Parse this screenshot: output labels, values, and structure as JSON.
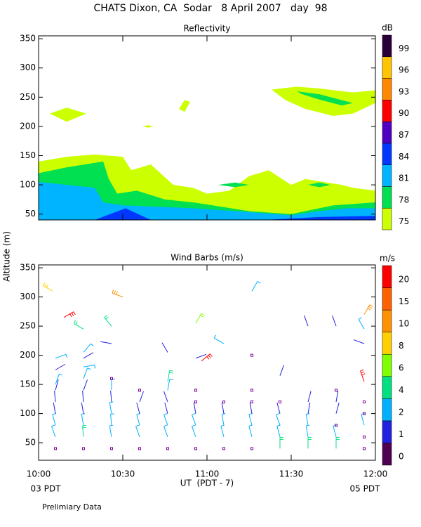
{
  "title": "CHATS Dixon, CA  Sodar   8 April 2007   day  98",
  "footer": "Prelimiary Data",
  "chart_data": [
    {
      "type": "contour",
      "title": "Reflectivity",
      "xlim": [
        0,
        120
      ],
      "xticks": [
        0,
        30,
        60,
        90,
        120
      ],
      "ylim": [
        40,
        355
      ],
      "yticks": [
        50,
        100,
        150,
        200,
        250,
        300,
        350
      ],
      "colorbar": {
        "title": "dB",
        "levels": [
          75,
          78,
          81,
          84,
          87,
          90,
          93,
          96,
          99
        ],
        "colors": [
          "#ccff00",
          "#00e050",
          "#00b4ff",
          "#0038ff",
          "#5000c0",
          "#ff0000",
          "#ff8800",
          "#ffc400",
          "#2a0038"
        ]
      },
      "regions": [
        {
          "level": 75,
          "t": [
            0,
            10,
            20,
            30,
            33,
            40,
            48,
            55,
            60,
            68,
            75,
            82,
            90,
            95,
            108,
            112,
            120,
            120,
            0
          ],
          "z": [
            140,
            148,
            152,
            148,
            125,
            135,
            100,
            95,
            85,
            90,
            115,
            125,
            100,
            110,
            100,
            95,
            90,
            40,
            40
          ]
        },
        {
          "level": 75,
          "t": [
            4,
            10,
            17,
            10
          ],
          "z": [
            222,
            232,
            222,
            208
          ]
        },
        {
          "level": 75,
          "t": [
            37,
            39,
            41,
            39
          ],
          "z": [
            200,
            202,
            200,
            198
          ]
        },
        {
          "level": 75,
          "t": [
            50,
            52,
            54,
            52
          ],
          "z": [
            230,
            245,
            242,
            225
          ]
        },
        {
          "level": 75,
          "t": [
            83,
            92,
            100,
            112,
            120,
            120,
            112,
            105,
            95,
            88
          ],
          "z": [
            263,
            268,
            265,
            258,
            262,
            240,
            222,
            218,
            230,
            245
          ]
        },
        {
          "level": 78,
          "t": [
            0,
            10,
            23,
            25,
            28,
            35,
            45,
            55,
            62,
            75,
            90,
            105,
            120,
            120,
            0
          ],
          "z": [
            120,
            130,
            140,
            110,
            85,
            90,
            75,
            70,
            65,
            55,
            50,
            65,
            70,
            40,
            40
          ]
        },
        {
          "level": 78,
          "t": [
            92,
            100,
            112,
            108,
            100,
            94
          ],
          "z": [
            260,
            255,
            240,
            236,
            246,
            255
          ]
        },
        {
          "level": 78,
          "t": [
            64,
            70,
            75,
            70
          ],
          "z": [
            100,
            104,
            100,
            96
          ]
        },
        {
          "level": 78,
          "t": [
            96,
            100,
            104,
            100
          ],
          "z": [
            100,
            104,
            100,
            96
          ]
        },
        {
          "level": 81,
          "t": [
            0,
            10,
            20,
            23,
            30,
            40,
            55,
            70,
            90,
            100,
            110,
            120,
            120,
            0
          ],
          "z": [
            105,
            100,
            95,
            70,
            65,
            63,
            60,
            55,
            48,
            55,
            60,
            60,
            40,
            40
          ]
        },
        {
          "level": 84,
          "t": [
            20,
            31,
            40
          ],
          "z": [
            40,
            60,
            40
          ]
        },
        {
          "level": 84,
          "t": [
            80,
            100,
            120,
            120
          ],
          "z": [
            40,
            45,
            47,
            40
          ]
        }
      ]
    },
    {
      "type": "barbs",
      "title": "Wind Barbs (m/s)",
      "ylabel": "Altitude (m)",
      "xlabel": "UT  (PDT - 7)",
      "x_start_label": "03 PDT",
      "x_end_label": "05 PDT",
      "xlim": [
        0,
        120
      ],
      "xticks": [
        {
          "value": 0,
          "label": "10:00"
        },
        {
          "value": 30,
          "label": "10:30"
        },
        {
          "value": 60,
          "label": "11:00"
        },
        {
          "value": 90,
          "label": "11:30"
        },
        {
          "value": 120,
          "label": "12:00"
        }
      ],
      "ylim": [
        20,
        355
      ],
      "yticks": [
        50,
        100,
        150,
        200,
        250,
        300,
        350
      ],
      "colorbar": {
        "title": "m/s",
        "levels": [
          0,
          1,
          2,
          4,
          6,
          8,
          10,
          15,
          20
        ],
        "colors": [
          "#500050",
          "#2020e0",
          "#00b0ff",
          "#00e080",
          "#80ff00",
          "#ffd000",
          "#ff9000",
          "#ff6000",
          "#ff0000"
        ]
      },
      "barbs": [
        {
          "t": 5,
          "z": 310,
          "speed": 8,
          "direction": 300
        },
        {
          "t": 9,
          "z": 265,
          "speed": 20,
          "direction": 60
        },
        {
          "t": 6,
          "z": 40,
          "speed": 0,
          "direction": 0
        },
        {
          "t": 6,
          "z": 60,
          "speed": 3,
          "direction": 340
        },
        {
          "t": 6,
          "z": 80,
          "speed": 3,
          "direction": 345
        },
        {
          "t": 6,
          "z": 100,
          "speed": 1.5,
          "direction": 350
        },
        {
          "t": 6,
          "z": 120,
          "speed": 1.5,
          "direction": 355
        },
        {
          "t": 6,
          "z": 140,
          "speed": 1.5,
          "direction": 15
        },
        {
          "t": 6,
          "z": 150,
          "speed": 3,
          "direction": 20
        },
        {
          "t": 6,
          "z": 175,
          "speed": 1.5,
          "direction": 60
        },
        {
          "t": 6,
          "z": 195,
          "speed": 3,
          "direction": 70
        },
        {
          "t": 16,
          "z": 40,
          "speed": 0,
          "direction": 0
        },
        {
          "t": 16,
          "z": 60,
          "speed": 5,
          "direction": 355
        },
        {
          "t": 16,
          "z": 80,
          "speed": 3,
          "direction": 350
        },
        {
          "t": 16,
          "z": 100,
          "speed": 1.5,
          "direction": 350
        },
        {
          "t": 16,
          "z": 120,
          "speed": 1.5,
          "direction": 355
        },
        {
          "t": 16,
          "z": 140,
          "speed": 1.5,
          "direction": 20
        },
        {
          "t": 16,
          "z": 160,
          "speed": 3,
          "direction": 20
        },
        {
          "t": 16,
          "z": 180,
          "speed": 3,
          "direction": 80
        },
        {
          "t": 16,
          "z": 195,
          "speed": 1.5,
          "direction": 60
        },
        {
          "t": 16,
          "z": 205,
          "speed": 3,
          "direction": 40
        },
        {
          "t": 16,
          "z": 245,
          "speed": 5,
          "direction": 300
        },
        {
          "t": 26,
          "z": 40,
          "speed": 0,
          "direction": 0
        },
        {
          "t": 26,
          "z": 60,
          "speed": 3,
          "direction": 350
        },
        {
          "t": 26,
          "z": 80,
          "speed": 3,
          "direction": 355
        },
        {
          "t": 26,
          "z": 100,
          "speed": 3,
          "direction": 350
        },
        {
          "t": 26,
          "z": 120,
          "speed": 1.5,
          "direction": 355
        },
        {
          "t": 26,
          "z": 140,
          "speed": 3,
          "direction": 0
        },
        {
          "t": 26,
          "z": 160,
          "speed": 0,
          "direction": 0
        },
        {
          "t": 26,
          "z": 220,
          "speed": 1.5,
          "direction": 280
        },
        {
          "t": 26,
          "z": 250,
          "speed": 5,
          "direction": 320
        },
        {
          "t": 30,
          "z": 300,
          "speed": 10,
          "direction": 290
        },
        {
          "t": 36,
          "z": 40,
          "speed": 0,
          "direction": 0
        },
        {
          "t": 36,
          "z": 60,
          "speed": 3,
          "direction": 340
        },
        {
          "t": 36,
          "z": 80,
          "speed": 3,
          "direction": 345
        },
        {
          "t": 36,
          "z": 100,
          "speed": 1.5,
          "direction": 345
        },
        {
          "t": 36,
          "z": 120,
          "speed": 1.5,
          "direction": 20
        },
        {
          "t": 36,
          "z": 140,
          "speed": 0,
          "direction": 0
        },
        {
          "t": 46,
          "z": 40,
          "speed": 0,
          "direction": 0
        },
        {
          "t": 46,
          "z": 60,
          "speed": 3,
          "direction": 340
        },
        {
          "t": 46,
          "z": 80,
          "speed": 3,
          "direction": 340
        },
        {
          "t": 46,
          "z": 100,
          "speed": 1.5,
          "direction": 345
        },
        {
          "t": 46,
          "z": 120,
          "speed": 1.5,
          "direction": 340
        },
        {
          "t": 46,
          "z": 140,
          "speed": 3,
          "direction": 10
        },
        {
          "t": 46,
          "z": 155,
          "speed": 5,
          "direction": 10
        },
        {
          "t": 46,
          "z": 205,
          "speed": 1.5,
          "direction": 330
        },
        {
          "t": 56,
          "z": 40,
          "speed": 0,
          "direction": 0
        },
        {
          "t": 56,
          "z": 60,
          "speed": 3,
          "direction": 340
        },
        {
          "t": 56,
          "z": 80,
          "speed": 3,
          "direction": 340
        },
        {
          "t": 56,
          "z": 100,
          "speed": 1.5,
          "direction": 350
        },
        {
          "t": 56,
          "z": 120,
          "speed": 0,
          "direction": 0
        },
        {
          "t": 56,
          "z": 140,
          "speed": 0,
          "direction": 0
        },
        {
          "t": 56,
          "z": 195,
          "speed": 1.5,
          "direction": 70
        },
        {
          "t": 58,
          "z": 190,
          "speed": 20,
          "direction": 50
        },
        {
          "t": 56,
          "z": 255,
          "speed": 6,
          "direction": 30
        },
        {
          "t": 66,
          "z": 40,
          "speed": 0,
          "direction": 0
        },
        {
          "t": 66,
          "z": 60,
          "speed": 3,
          "direction": 345
        },
        {
          "t": 66,
          "z": 80,
          "speed": 3,
          "direction": 350
        },
        {
          "t": 66,
          "z": 100,
          "speed": 1.5,
          "direction": 350
        },
        {
          "t": 66,
          "z": 120,
          "speed": 0,
          "direction": 0
        },
        {
          "t": 66,
          "z": 220,
          "speed": 3,
          "direction": 300
        },
        {
          "t": 76,
          "z": 40,
          "speed": 0,
          "direction": 0
        },
        {
          "t": 76,
          "z": 60,
          "speed": 3,
          "direction": 345
        },
        {
          "t": 76,
          "z": 80,
          "speed": 3,
          "direction": 345
        },
        {
          "t": 76,
          "z": 100,
          "speed": 1.5,
          "direction": 350
        },
        {
          "t": 76,
          "z": 120,
          "speed": 0,
          "direction": 0
        },
        {
          "t": 76,
          "z": 140,
          "speed": 0,
          "direction": 0
        },
        {
          "t": 76,
          "z": 200,
          "speed": 0,
          "direction": 0
        },
        {
          "t": 76,
          "z": 310,
          "speed": 3,
          "direction": 30
        },
        {
          "t": 86,
          "z": 40,
          "speed": 4,
          "direction": 0
        },
        {
          "t": 86,
          "z": 60,
          "speed": 3,
          "direction": 345
        },
        {
          "t": 86,
          "z": 80,
          "speed": 3,
          "direction": 340
        },
        {
          "t": 86,
          "z": 100,
          "speed": 1.5,
          "direction": 345
        },
        {
          "t": 86,
          "z": 120,
          "speed": 0,
          "direction": 0
        },
        {
          "t": 86,
          "z": 165,
          "speed": 1.5,
          "direction": 20
        },
        {
          "t": 96,
          "z": 40,
          "speed": 4,
          "direction": 0
        },
        {
          "t": 96,
          "z": 60,
          "speed": 3,
          "direction": 350
        },
        {
          "t": 96,
          "z": 80,
          "speed": 3,
          "direction": 350
        },
        {
          "t": 96,
          "z": 100,
          "speed": 1.5,
          "direction": 10
        },
        {
          "t": 96,
          "z": 120,
          "speed": 1.5,
          "direction": 15
        },
        {
          "t": 96,
          "z": 250,
          "speed": 1.5,
          "direction": 340
        },
        {
          "t": 106,
          "z": 40,
          "speed": 4,
          "direction": 0
        },
        {
          "t": 106,
          "z": 60,
          "speed": 3,
          "direction": 345
        },
        {
          "t": 106,
          "z": 80,
          "speed": 0,
          "direction": 0
        },
        {
          "t": 106,
          "z": 100,
          "speed": 1.5,
          "direction": 15
        },
        {
          "t": 106,
          "z": 120,
          "speed": 1.5,
          "direction": 10
        },
        {
          "t": 106,
          "z": 140,
          "speed": 0,
          "direction": 0
        },
        {
          "t": 106,
          "z": 250,
          "speed": 1.5,
          "direction": 340
        },
        {
          "t": 116,
          "z": 40,
          "speed": 0,
          "direction": 0
        },
        {
          "t": 116,
          "z": 60,
          "speed": 0,
          "direction": 0
        },
        {
          "t": 116,
          "z": 80,
          "speed": 3,
          "direction": 345
        },
        {
          "t": 116,
          "z": 100,
          "speed": 0,
          "direction": 0
        },
        {
          "t": 116,
          "z": 120,
          "speed": 0,
          "direction": 0
        },
        {
          "t": 116,
          "z": 155,
          "speed": 20,
          "direction": 340
        },
        {
          "t": 116,
          "z": 220,
          "speed": 1.5,
          "direction": 290
        },
        {
          "t": 116,
          "z": 245,
          "speed": 3,
          "direction": 330
        },
        {
          "t": 116,
          "z": 270,
          "speed": 10,
          "direction": 30
        }
      ]
    }
  ]
}
